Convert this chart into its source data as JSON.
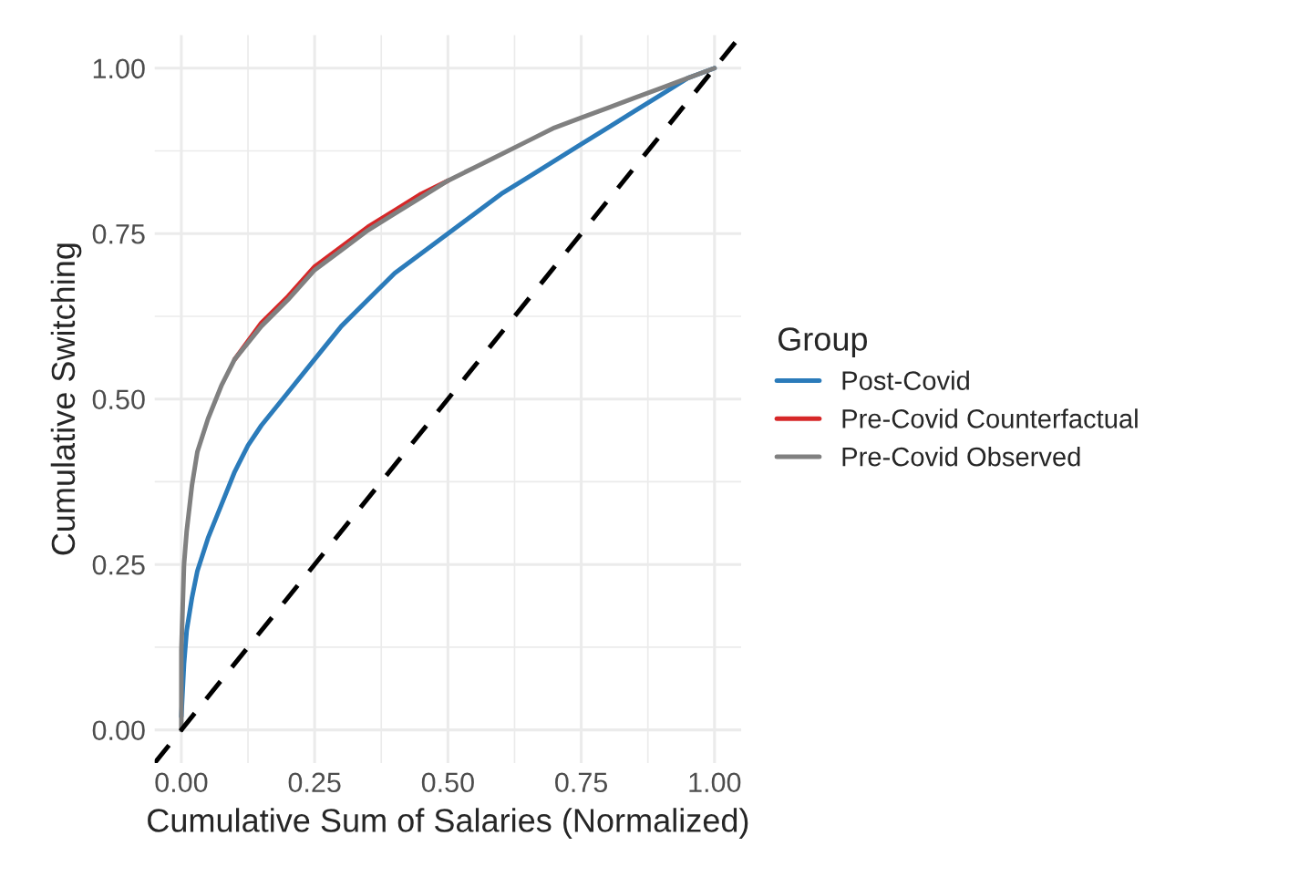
{
  "chart_data": {
    "type": "line",
    "xlabel": "Cumulative Sum of Salaries (Normalized)",
    "ylabel": "Cumulative Switching",
    "legend_title": "Group",
    "legend": "right",
    "grid": true,
    "xlim": [
      -0.05,
      1.05
    ],
    "ylim": [
      -0.05,
      1.05
    ],
    "xticks": [
      {
        "value": 0,
        "label": "0.00"
      },
      {
        "value": 0.25,
        "label": "0.25"
      },
      {
        "value": 0.5,
        "label": "0.50"
      },
      {
        "value": 0.75,
        "label": "0.75"
      },
      {
        "value": 1,
        "label": "1.00"
      }
    ],
    "yticks": [
      {
        "value": 0,
        "label": "0.00"
      },
      {
        "value": 0.25,
        "label": "0.25"
      },
      {
        "value": 0.5,
        "label": "0.50"
      },
      {
        "value": 0.75,
        "label": "0.75"
      },
      {
        "value": 1,
        "label": "1.00"
      }
    ],
    "series": [
      {
        "name": "Post-Covid",
        "color": "#2b7bba",
        "x": [
          0,
          0.005,
          0.01,
          0.02,
          0.03,
          0.05,
          0.075,
          0.1,
          0.125,
          0.15,
          0.2,
          0.25,
          0.3,
          0.35,
          0.4,
          0.45,
          0.5,
          0.55,
          0.6,
          0.65,
          0.7,
          0.75,
          0.8,
          0.85,
          0.9,
          0.95,
          1
        ],
        "values": [
          0.02,
          0.1,
          0.15,
          0.2,
          0.24,
          0.29,
          0.34,
          0.39,
          0.43,
          0.46,
          0.51,
          0.56,
          0.61,
          0.65,
          0.69,
          0.72,
          0.75,
          0.78,
          0.81,
          0.835,
          0.86,
          0.885,
          0.91,
          0.935,
          0.96,
          0.985,
          1
        ]
      },
      {
        "name": "Pre-Covid Counterfactual",
        "color": "#d62728",
        "x": [
          0.1,
          0.15,
          0.2,
          0.25,
          0.3,
          0.35,
          0.4,
          0.45,
          0.5
        ],
        "values": [
          0.56,
          0.615,
          0.655,
          0.7,
          0.73,
          0.76,
          0.785,
          0.81,
          0.83
        ]
      },
      {
        "name": "Pre-Covid Observed",
        "color": "#808080",
        "x": [
          0,
          0,
          0.005,
          0.01,
          0.02,
          0.03,
          0.05,
          0.075,
          0.1,
          0.15,
          0.2,
          0.25,
          0.3,
          0.35,
          0.4,
          0.45,
          0.5,
          0.55,
          0.6,
          0.65,
          0.7,
          0.75,
          0.8,
          0.85,
          0.9,
          0.95,
          1
        ],
        "values": [
          0,
          0.12,
          0.25,
          0.3,
          0.37,
          0.42,
          0.47,
          0.52,
          0.56,
          0.61,
          0.65,
          0.695,
          0.725,
          0.755,
          0.78,
          0.805,
          0.83,
          0.85,
          0.87,
          0.89,
          0.91,
          0.925,
          0.94,
          0.955,
          0.97,
          0.985,
          1
        ]
      },
      {
        "color": "#000000",
        "line_style": "dashed",
        "x": [
          -0.05,
          1.05
        ],
        "values": [
          -0.05,
          1.05
        ]
      }
    ]
  }
}
